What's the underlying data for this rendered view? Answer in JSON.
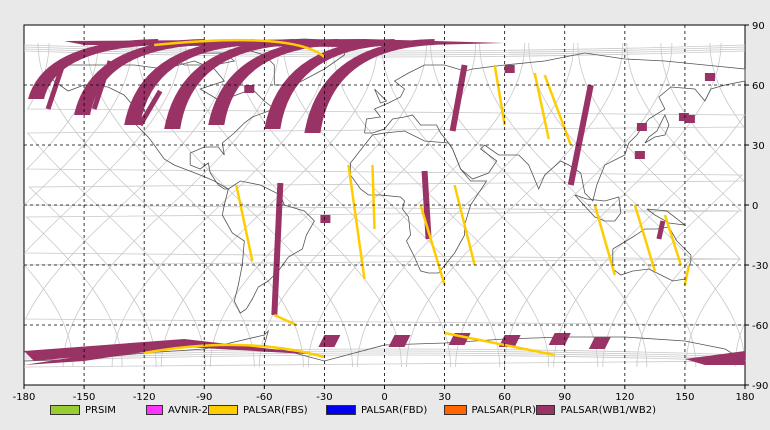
{
  "map": {
    "lon_ticks": [
      "-180",
      "-150",
      "-120",
      "-90",
      "-60",
      "-30",
      "0",
      "30",
      "60",
      "90",
      "120",
      "150",
      "180"
    ],
    "lat_ticks": [
      "90",
      "60",
      "30",
      "0",
      "-30",
      "-60",
      "-90"
    ],
    "lon_range": [
      -180,
      180
    ],
    "lat_range": [
      -90,
      90
    ],
    "grid": "dashed",
    "background": "#ffffff"
  },
  "legend": [
    {
      "label": "PRSIM",
      "color": "#99cc33",
      "icon": "green-swatch"
    },
    {
      "label": "AVNIR-2",
      "color": "#ff33ff",
      "icon": "magenta-swatch"
    },
    {
      "label": "PALSAR(FBS)",
      "color": "#ffcc00",
      "icon": "yellow-swatch"
    },
    {
      "label": "PALSAR(FBD)",
      "color": "#0000ee",
      "icon": "blue-swatch"
    },
    {
      "label": "PALSAR(PLR)",
      "color": "#ff6600",
      "icon": "orange-swatch"
    },
    {
      "label": "PALSAR(WB1/WB2)",
      "color": "#993366",
      "icon": "maroon-swatch"
    }
  ]
}
